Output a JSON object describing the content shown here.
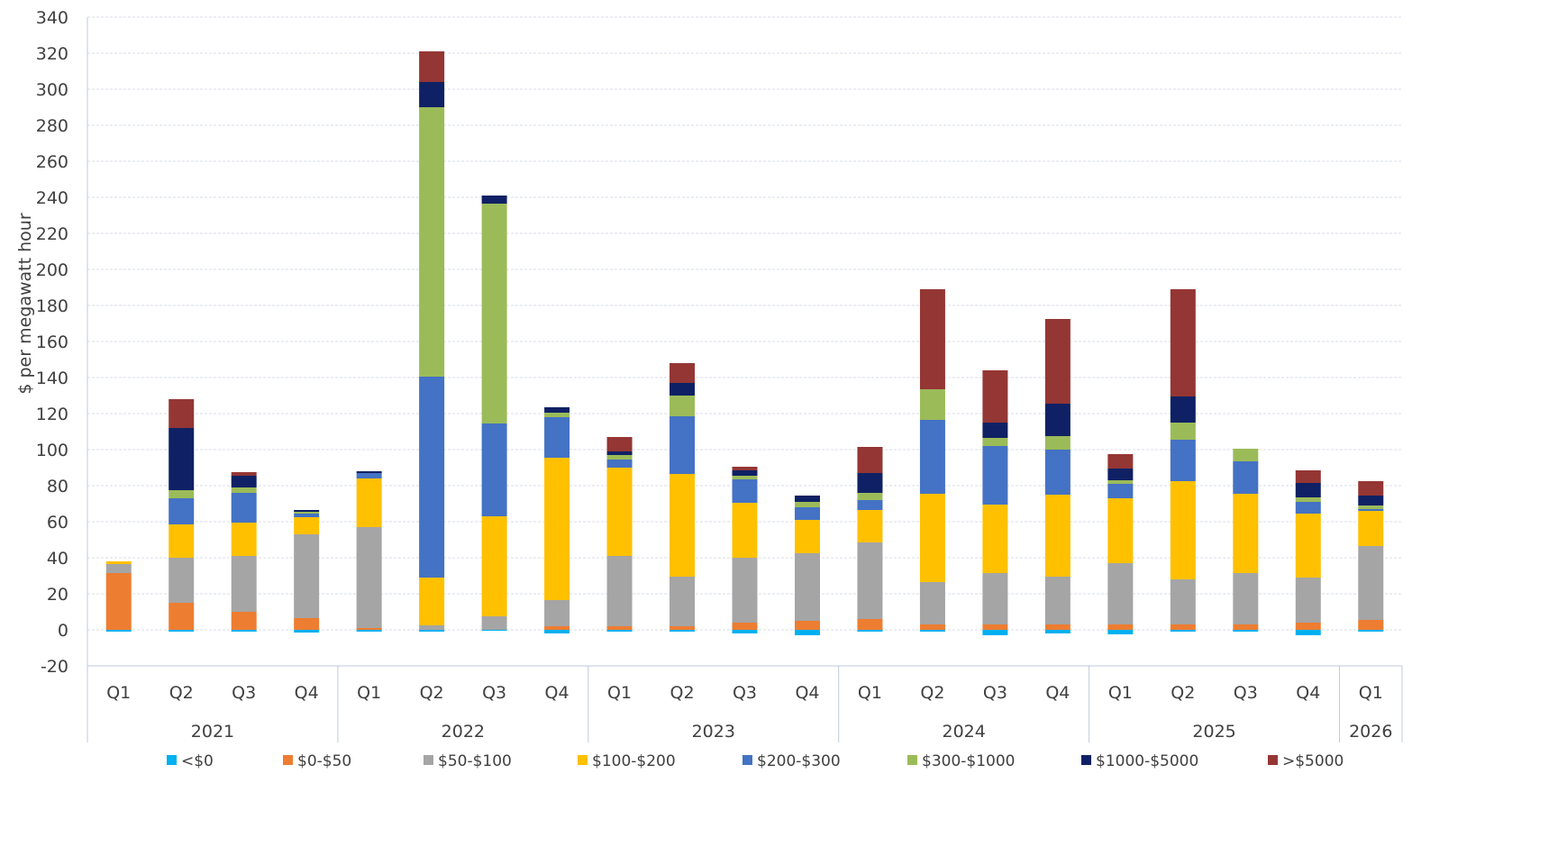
{
  "chart_data": {
    "type": "bar",
    "stacked": true,
    "ylabel": "$ per megawatt hour",
    "ylim": [
      -20,
      340
    ],
    "ytick_step": 20,
    "grid": true,
    "legend_position": "bottom",
    "quarters": [
      "Q1",
      "Q2",
      "Q3",
      "Q4",
      "Q1",
      "Q2",
      "Q3",
      "Q4",
      "Q1",
      "Q2",
      "Q3",
      "Q4",
      "Q1",
      "Q2",
      "Q3",
      "Q4",
      "Q1",
      "Q2",
      "Q3",
      "Q4",
      "Q1"
    ],
    "years": [
      {
        "label": "2021",
        "count": 4
      },
      {
        "label": "2022",
        "count": 4
      },
      {
        "label": "2023",
        "count": 4
      },
      {
        "label": "2024",
        "count": 4
      },
      {
        "label": "2025",
        "count": 4
      },
      {
        "label": "2026",
        "count": 1
      }
    ],
    "series": [
      {
        "name": "<$0",
        "color": "#00B0F0",
        "values": [
          -1,
          -1,
          -1,
          -1.5,
          -1,
          -1,
          -0.5,
          -2,
          -1,
          -1,
          -2,
          -3,
          -1,
          -1,
          -3,
          -2,
          -2.5,
          -1,
          -1,
          -3,
          -1
        ]
      },
      {
        "name": "$0-$50",
        "color": "#ED7D31",
        "values": [
          31.5,
          15,
          10,
          6.5,
          1,
          0,
          0,
          2,
          2,
          2,
          4,
          5,
          6,
          3,
          3,
          3,
          3,
          3,
          3,
          4,
          5.5
        ]
      },
      {
        "name": "$50-$100",
        "color": "#A5A5A5",
        "values": [
          5,
          25,
          31,
          46.5,
          56,
          2.5,
          7.5,
          14.5,
          39,
          27.5,
          36,
          37.5,
          42.5,
          23.5,
          28.5,
          26.5,
          34,
          25,
          28.5,
          25,
          41
        ]
      },
      {
        "name": "$100-$200",
        "color": "#FFC000",
        "values": [
          1.5,
          18.5,
          18.5,
          9.5,
          27,
          26.5,
          55.5,
          79,
          49,
          57,
          30.5,
          18.5,
          18,
          49,
          38,
          45.5,
          36,
          54.5,
          44,
          35.5,
          19.5
        ]
      },
      {
        "name": "$200-$300",
        "color": "#4472C4",
        "values": [
          0,
          14.5,
          16.5,
          2,
          3,
          111.5,
          51.5,
          22.5,
          4.5,
          32,
          13,
          7,
          5.5,
          41,
          32.5,
          25,
          8,
          23,
          18,
          6.5,
          1
        ]
      },
      {
        "name": "$300-$1000",
        "color": "#9BBB59",
        "values": [
          0,
          4.5,
          3,
          1,
          0,
          149.5,
          122,
          2.5,
          2.5,
          11.5,
          2,
          3,
          4,
          17,
          4.5,
          7.5,
          2,
          9.5,
          7,
          2.5,
          2
        ]
      },
      {
        "name": "$1000-$5000",
        "color": "#0F2164",
        "values": [
          0,
          34.5,
          6.5,
          1,
          1,
          14,
          4.5,
          3,
          2,
          7,
          3,
          3.5,
          11,
          0,
          8.5,
          18,
          6.5,
          14.5,
          0,
          8,
          5.5
        ]
      },
      {
        "name": ">$5000",
        "color": "#943634",
        "values": [
          0,
          16,
          2,
          0,
          0,
          17,
          0,
          0,
          8,
          11,
          2,
          0,
          14.5,
          55.5,
          29,
          47,
          8,
          59.5,
          0,
          7,
          8
        ]
      }
    ]
  }
}
